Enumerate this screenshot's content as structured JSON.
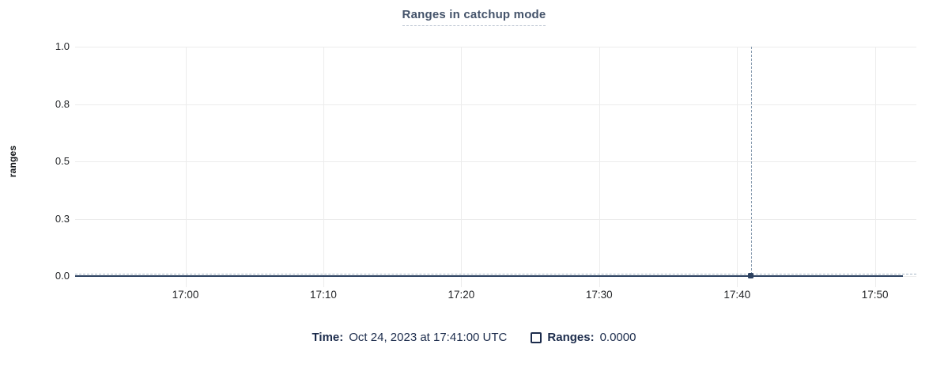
{
  "chart": {
    "title": "Ranges in catchup mode"
  },
  "legend": {
    "time_label": "Time:",
    "time_value": "Oct 24, 2023 at 17:41:00 UTC",
    "series_label": "Ranges:",
    "series_value": "0.0000"
  },
  "colors": {
    "series_line": "#2c4160",
    "crosshair_vertical": "#8498ad",
    "crosshair_horizontal": "#a7b7c5",
    "gridline": "#ececec",
    "title_text": "#44536a",
    "legend_text": "#1c2c4c",
    "axis_text": "#242629"
  },
  "chart_data": {
    "type": "line",
    "title": "Ranges in catchup mode",
    "xlabel": "",
    "ylabel": "ranges",
    "ylim": [
      0,
      1.0
    ],
    "y_ticks": [
      {
        "value": 1.0,
        "label": "1.0"
      },
      {
        "value": 0.75,
        "label": "0.8"
      },
      {
        "value": 0.5,
        "label": "0.5"
      },
      {
        "value": 0.25,
        "label": "0.3"
      },
      {
        "value": 0.0,
        "label": "0.0"
      }
    ],
    "x_domain": [
      "16:52",
      "17:53"
    ],
    "x_ticks": [
      "17:00",
      "17:10",
      "17:20",
      "17:30",
      "17:40",
      "17:50"
    ],
    "grid": true,
    "legend_position": "bottom",
    "series": [
      {
        "name": "Ranges",
        "color": "#2c4160",
        "x_start": "16:52",
        "x_end": "17:52",
        "constant_value": 0
      }
    ],
    "hover": {
      "time": "17:41",
      "value": 0,
      "value_display": "0.0000",
      "time_display": "Oct 24, 2023 at 17:41:00 UTC"
    }
  }
}
